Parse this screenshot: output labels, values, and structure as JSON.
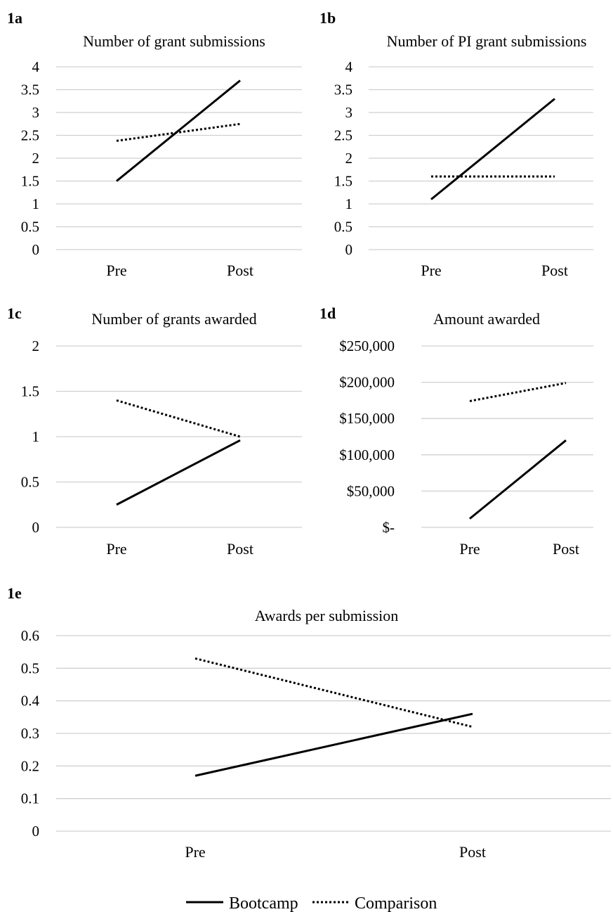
{
  "figure": {
    "legend": {
      "bootcamp": "Bootcamp",
      "comparison": "Comparison"
    }
  },
  "chart_data": [
    {
      "id": "1a",
      "panel_label": "1a",
      "type": "line",
      "title": "Number of grant submissions",
      "categories": [
        "Pre",
        "Post"
      ],
      "ylim": [
        0,
        4
      ],
      "yticks": [
        0,
        0.5,
        1,
        1.5,
        2,
        2.5,
        3,
        3.5,
        4
      ],
      "ytick_labels": [
        "0",
        "0.5",
        "1",
        "1.5",
        "2",
        "2.5",
        "3",
        "3.5",
        "4"
      ],
      "grid": true,
      "series": [
        {
          "name": "Bootcamp",
          "style": "solid",
          "values": [
            1.5,
            3.7
          ]
        },
        {
          "name": "Comparison",
          "style": "dotted",
          "values": [
            2.38,
            2.75
          ]
        }
      ]
    },
    {
      "id": "1b",
      "panel_label": "1b",
      "type": "line",
      "title": "Number of PI grant submissions",
      "categories": [
        "Pre",
        "Post"
      ],
      "ylim": [
        0,
        4
      ],
      "yticks": [
        0,
        0.5,
        1,
        1.5,
        2,
        2.5,
        3,
        3.5,
        4
      ],
      "ytick_labels": [
        "0",
        "0.5",
        "1",
        "1.5",
        "2",
        "2.5",
        "3",
        "3.5",
        "4"
      ],
      "grid": true,
      "series": [
        {
          "name": "Bootcamp",
          "style": "solid",
          "values": [
            1.1,
            3.3
          ]
        },
        {
          "name": "Comparison",
          "style": "dotted",
          "values": [
            1.6,
            1.6
          ]
        }
      ]
    },
    {
      "id": "1c",
      "panel_label": "1c",
      "type": "line",
      "title": "Number of grants awarded",
      "categories": [
        "Pre",
        "Post"
      ],
      "ylim": [
        0,
        2
      ],
      "yticks": [
        0,
        0.5,
        1,
        1.5,
        2
      ],
      "ytick_labels": [
        "0",
        "0.5",
        "1",
        "1.5",
        "2"
      ],
      "grid": true,
      "series": [
        {
          "name": "Bootcamp",
          "style": "solid",
          "values": [
            0.25,
            0.96
          ]
        },
        {
          "name": "Comparison",
          "style": "dotted",
          "values": [
            1.4,
            1.0
          ]
        }
      ]
    },
    {
      "id": "1d",
      "panel_label": "1d",
      "type": "line",
      "title": "Amount awarded",
      "categories": [
        "Pre",
        "Post"
      ],
      "ylim": [
        0,
        250000
      ],
      "yticks": [
        0,
        50000,
        100000,
        150000,
        200000,
        250000
      ],
      "ytick_labels": [
        "$-",
        "$50,000",
        "$100,000",
        "$150,000",
        "$200,000",
        "$250,000"
      ],
      "grid": true,
      "series": [
        {
          "name": "Bootcamp",
          "style": "solid",
          "values": [
            12000,
            120000
          ]
        },
        {
          "name": "Comparison",
          "style": "dotted",
          "values": [
            174000,
            199000
          ]
        }
      ]
    },
    {
      "id": "1e",
      "panel_label": "1e",
      "type": "line",
      "title": "Awards per submission",
      "categories": [
        "Pre",
        "Post"
      ],
      "ylim": [
        0,
        0.6
      ],
      "yticks": [
        0,
        0.1,
        0.2,
        0.3,
        0.4,
        0.5,
        0.6
      ],
      "ytick_labels": [
        "0",
        "0.1",
        "0.2",
        "0.3",
        "0.4",
        "0.5",
        "0.6"
      ],
      "grid": true,
      "series": [
        {
          "name": "Bootcamp",
          "style": "solid",
          "values": [
            0.17,
            0.36
          ]
        },
        {
          "name": "Comparison",
          "style": "dotted",
          "values": [
            0.53,
            0.32
          ]
        }
      ]
    }
  ]
}
